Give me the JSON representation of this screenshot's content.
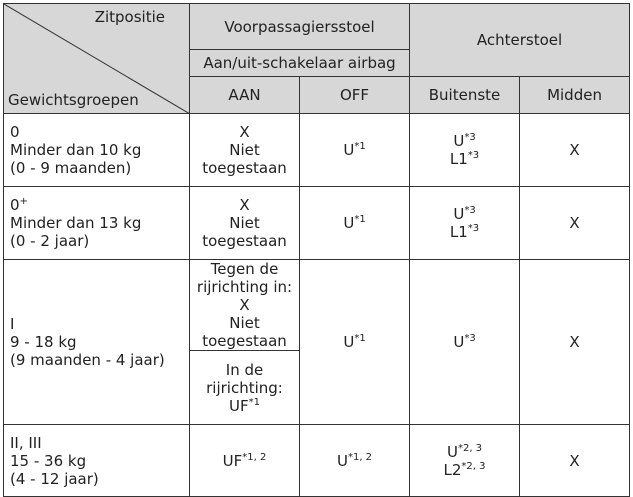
{
  "header": {
    "seat_position": "Zitpositie",
    "weight_groups": "Gewichtsgroepen",
    "front": "Voorpassagiersstoel",
    "switch": "Aan/uit-schakelaar airbag",
    "rear": "Achterstoel",
    "columns": [
      "AAN",
      "OFF",
      "Buitenste",
      "Midden"
    ]
  },
  "rows": [
    {
      "group": [
        "0",
        "Minder dan 10 kg",
        "(0 - 9 maanden)"
      ],
      "aan": [
        [
          "X",
          "Niet",
          "toegestaan"
        ]
      ],
      "off": [
        {
          "text": "U",
          "sup": "*1"
        }
      ],
      "outer": [
        {
          "text": "U",
          "sup": "*3"
        },
        {
          "text": "L1",
          "sup": "*3"
        }
      ],
      "middle": [
        "X"
      ]
    },
    {
      "group": [
        {
          "text": "0",
          "sup": "+"
        },
        "Minder dan 13 kg",
        "(0 - 2 jaar)"
      ],
      "aan": [
        [
          "X",
          "Niet",
          "toegestaan"
        ]
      ],
      "off": [
        {
          "text": "U",
          "sup": "*1"
        }
      ],
      "outer": [
        {
          "text": "U",
          "sup": "*3"
        },
        {
          "text": "L1",
          "sup": "*3"
        }
      ],
      "middle": [
        "X"
      ]
    },
    {
      "group": [
        "I",
        "9 - 18 kg",
        "(9 maanden - 4 jaar)"
      ],
      "aan": [
        [
          "Tegen de rijrichting in: X",
          "Niet",
          "toegestaan"
        ],
        [
          "In de rijrichting:",
          {
            "text": "UF",
            "sup": "*1"
          }
        ]
      ],
      "off": [
        {
          "text": "U",
          "sup": "*1"
        }
      ],
      "outer": [
        {
          "text": "U",
          "sup": "*3"
        }
      ],
      "middle": [
        "X"
      ]
    },
    {
      "group": [
        "II, III",
        "15 - 36 kg",
        "(4 - 12 jaar)"
      ],
      "aan": [
        [
          {
            "text": "UF",
            "sup": "*1, 2"
          }
        ]
      ],
      "off": [
        {
          "text": "U",
          "sup": "*1, 2"
        }
      ],
      "outer": [
        {
          "text": "U",
          "sup": "*2, 3"
        },
        {
          "text": "L2",
          "sup": "*2, 3"
        }
      ],
      "middle": [
        "X"
      ]
    }
  ]
}
